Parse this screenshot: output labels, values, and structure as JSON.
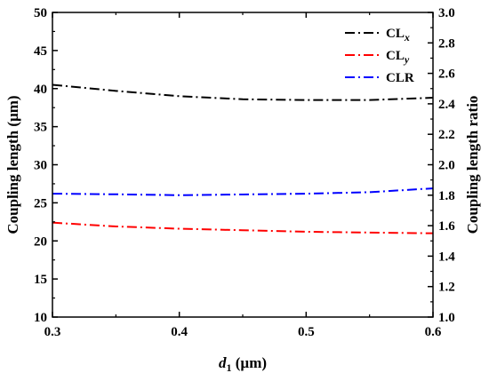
{
  "chart_data": {
    "type": "line",
    "xlabel_main": "d",
    "xlabel_sub": "1",
    "xlabel_unit": " (µm)",
    "ylabel_left": "Coupling length (µm)",
    "ylabel_right": "Coupling length ratio",
    "xlim": [
      0.3,
      0.6
    ],
    "ylim_left": [
      10,
      50
    ],
    "ylim_right": [
      1.0,
      3.0
    ],
    "x_ticks": [
      "0.3",
      "0.4",
      "0.5",
      "0.6"
    ],
    "y_left_ticks": [
      "10",
      "15",
      "20",
      "25",
      "30",
      "35",
      "40",
      "45",
      "50"
    ],
    "y_right_ticks": [
      "1.0",
      "1.2",
      "1.4",
      "1.6",
      "1.8",
      "2.0",
      "2.2",
      "2.4",
      "2.6",
      "2.8",
      "3.0"
    ],
    "x": [
      0.3,
      0.35,
      0.4,
      0.45,
      0.5,
      0.55,
      0.6
    ],
    "series": [
      {
        "name": "CL",
        "name_sub": "x",
        "axis": "left",
        "color": "#000000",
        "values": [
          40.5,
          39.7,
          39.0,
          38.6,
          38.5,
          38.5,
          38.8
        ]
      },
      {
        "name": "CL",
        "name_sub": "y",
        "axis": "left",
        "color": "#ff0000",
        "values": [
          22.4,
          21.9,
          21.6,
          21.4,
          21.2,
          21.1,
          21.0
        ]
      },
      {
        "name": "CLR",
        "name_sub": "",
        "axis": "right",
        "color": "#0000ff",
        "values": [
          1.81,
          1.806,
          1.8,
          1.805,
          1.81,
          1.82,
          1.845
        ]
      }
    ],
    "legend_position": "top-right",
    "grid": false
  }
}
